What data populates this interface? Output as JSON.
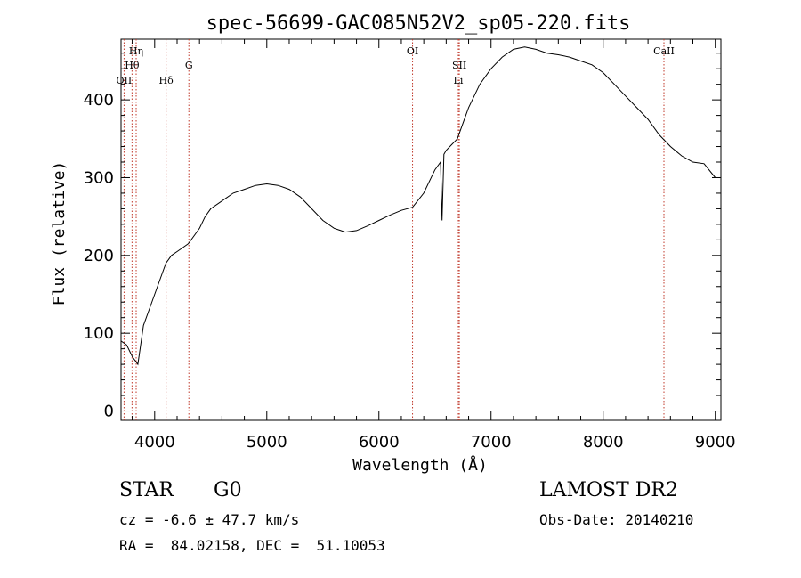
{
  "chart_data": {
    "type": "line",
    "title": "spec-56699-GAC085N52V2_sp05-220.fits",
    "xlabel": "Wavelength (Å)",
    "ylabel": "Flux (relative)",
    "xlim": [
      3700,
      9050
    ],
    "ylim": [
      -12,
      478
    ],
    "xticks": [
      4000,
      5000,
      6000,
      7000,
      8000,
      9000
    ],
    "yticks": [
      0,
      100,
      200,
      300,
      400
    ],
    "grid": false,
    "series": [
      {
        "x": [
          3700,
          3750,
          3800,
          3850,
          3900,
          3950,
          4000,
          4050,
          4100,
          4150,
          4200,
          4250,
          4300,
          4350,
          4400,
          4450,
          4500,
          4600,
          4700,
          4800,
          4900,
          5000,
          5100,
          5200,
          5300,
          5400,
          5500,
          5600,
          5700,
          5800,
          5900,
          6000,
          6100,
          6200,
          6300,
          6400,
          6500,
          6550,
          6563,
          6580,
          6600,
          6700,
          6800,
          6900,
          7000,
          7100,
          7200,
          7300,
          7400,
          7500,
          7600,
          7700,
          7800,
          7900,
          8000,
          8100,
          8200,
          8300,
          8400,
          8500,
          8600,
          8700,
          8800,
          8900,
          9000
        ],
        "y": [
          90,
          85,
          70,
          60,
          110,
          130,
          150,
          170,
          190,
          200,
          205,
          210,
          215,
          225,
          235,
          250,
          260,
          270,
          280,
          285,
          290,
          292,
          290,
          285,
          275,
          260,
          245,
          235,
          230,
          232,
          238,
          245,
          252,
          258,
          262,
          280,
          310,
          320,
          245,
          330,
          335,
          350,
          390,
          420,
          440,
          455,
          465,
          468,
          465,
          460,
          458,
          455,
          450,
          445,
          435,
          420,
          405,
          390,
          375,
          355,
          340,
          328,
          320,
          318,
          300
        ]
      }
    ],
    "line_markers": [
      {
        "label": "OII",
        "x": 3727,
        "row": 3
      },
      {
        "label": "Hθ",
        "x": 3798,
        "row": 2
      },
      {
        "label": "Hη",
        "x": 3835,
        "row": 1
      },
      {
        "label": "Hδ",
        "x": 4102,
        "row": 3
      },
      {
        "label": "G",
        "x": 4305,
        "row": 2
      },
      {
        "label": "OI",
        "x": 6300,
        "row": 1
      },
      {
        "label": "SII",
        "x": 6717,
        "row": 2
      },
      {
        "label": "Li",
        "x": 6708,
        "row": 3
      },
      {
        "label": "CaII",
        "x": 8542,
        "row": 1
      }
    ],
    "colors": {
      "spectrum": "#000000",
      "markers": "#c0392b"
    }
  },
  "info": {
    "object_type": "STAR",
    "subclass": "G0",
    "survey": "LAMOST DR2",
    "cz": "cz = -6.6 ± 47.7 km/s",
    "obs_date": "Obs-Date: 20140210",
    "coords": "RA =  84.02158, DEC =  51.10053"
  }
}
